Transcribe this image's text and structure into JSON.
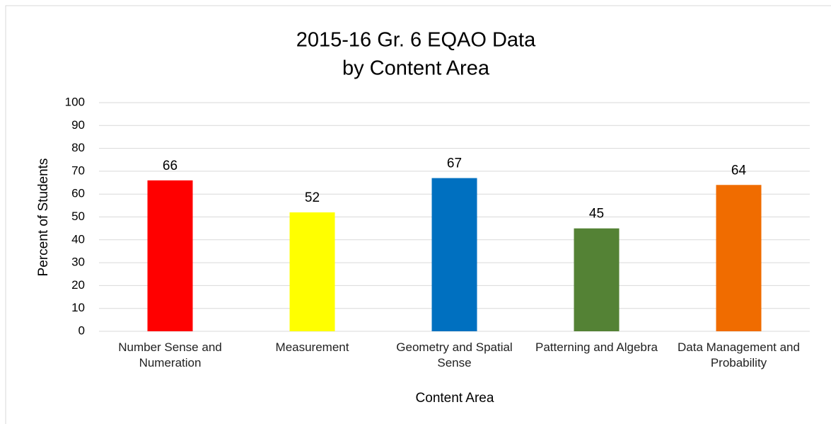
{
  "chart_data": {
    "type": "bar",
    "title": [
      "2015-16 Gr. 6 EQAO Data",
      "by Content Area"
    ],
    "x_label": "Content Area",
    "y_label": "Percent of Students",
    "categories": [
      "Number Sense and Numeration",
      "Measurement",
      "Geometry and Spatial Sense",
      "Patterning and Algebra",
      "Data Management and Probability"
    ],
    "values": [
      66,
      52,
      67,
      45,
      64
    ],
    "colors": [
      "#ff0000",
      "#ffff00",
      "#0070c0",
      "#548235",
      "#f06c00"
    ],
    "ylim": [
      0,
      100
    ],
    "yticks": [
      0,
      10,
      20,
      30,
      40,
      50,
      60,
      70,
      80,
      90,
      100
    ],
    "grid": true,
    "data_labels": true
  }
}
